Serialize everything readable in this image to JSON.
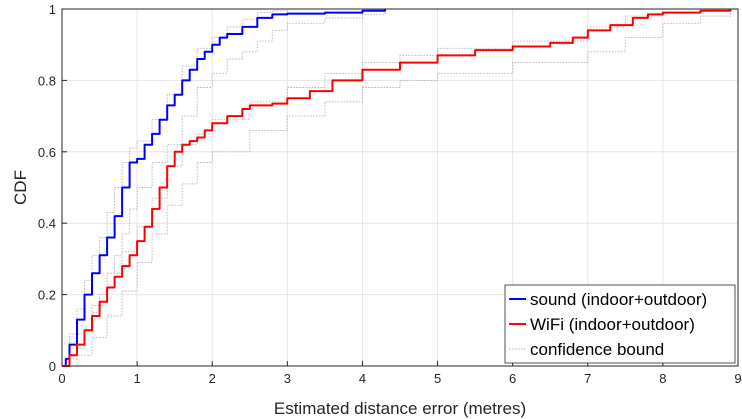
{
  "chart_data": {
    "type": "line",
    "xlabel": "Estimated distance error (metres)",
    "ylabel": "CDF",
    "xlim": [
      0,
      9
    ],
    "ylim": [
      0,
      1
    ],
    "xticks": [
      "0",
      "1",
      "2",
      "3",
      "4",
      "5",
      "6",
      "7",
      "8",
      "9"
    ],
    "yticks": [
      "0",
      "0.2",
      "0.4",
      "0.6",
      "0.8",
      "1"
    ],
    "grid": true,
    "legend_position": "bottom-right",
    "colors": {
      "sound": "#0000ff",
      "wifi": "#ff0000",
      "bound": "#b3b3b3",
      "axis": "#262626",
      "grid": "#e6e6e6"
    },
    "series": [
      {
        "name": "sound (indoor+outdoor)",
        "role": "main",
        "color": "#0000ff",
        "x": [
          0,
          0.05,
          0.1,
          0.2,
          0.3,
          0.4,
          0.5,
          0.6,
          0.7,
          0.8,
          0.9,
          1.0,
          1.1,
          1.2,
          1.3,
          1.4,
          1.5,
          1.6,
          1.7,
          1.8,
          1.9,
          2.0,
          2.1,
          2.2,
          2.4,
          2.6,
          2.8,
          3.0,
          3.5,
          4.0,
          4.3
        ],
        "y": [
          0,
          0.02,
          0.06,
          0.13,
          0.2,
          0.26,
          0.31,
          0.36,
          0.42,
          0.5,
          0.57,
          0.58,
          0.62,
          0.65,
          0.69,
          0.73,
          0.76,
          0.8,
          0.83,
          0.86,
          0.88,
          0.9,
          0.92,
          0.93,
          0.95,
          0.975,
          0.985,
          0.987,
          0.99,
          0.995,
          1.0
        ]
      },
      {
        "name": "WiFi (indoor+outdoor)",
        "role": "main",
        "color": "#ff0000",
        "x": [
          0,
          0.1,
          0.2,
          0.3,
          0.4,
          0.5,
          0.6,
          0.7,
          0.8,
          0.9,
          1.0,
          1.1,
          1.2,
          1.3,
          1.4,
          1.5,
          1.6,
          1.7,
          1.8,
          1.9,
          2.0,
          2.2,
          2.4,
          2.5,
          2.8,
          3.0,
          3.3,
          3.6,
          4.0,
          4.5,
          5.0,
          5.5,
          6.0,
          6.5,
          6.8,
          7.0,
          7.3,
          7.6,
          7.8,
          8.0,
          8.5,
          8.9
        ],
        "y": [
          0,
          0.03,
          0.06,
          0.1,
          0.14,
          0.18,
          0.22,
          0.25,
          0.28,
          0.31,
          0.35,
          0.39,
          0.44,
          0.5,
          0.56,
          0.6,
          0.62,
          0.63,
          0.64,
          0.66,
          0.68,
          0.7,
          0.72,
          0.73,
          0.735,
          0.75,
          0.77,
          0.8,
          0.83,
          0.85,
          0.87,
          0.885,
          0.895,
          0.905,
          0.92,
          0.94,
          0.955,
          0.975,
          0.985,
          0.99,
          0.995,
          1.0
        ]
      },
      {
        "name": "confidence bound",
        "role": "bound",
        "color": "#b3b3b3",
        "x": [
          0,
          0.1,
          0.2,
          0.3,
          0.4,
          0.5,
          0.6,
          0.7,
          0.8,
          0.9,
          1.0,
          1.2,
          1.4,
          1.6,
          1.8,
          2.0,
          2.2,
          2.4,
          2.6,
          2.8,
          3.0,
          3.5,
          4.0,
          4.3
        ],
        "y": [
          0,
          0.09,
          0.16,
          0.24,
          0.31,
          0.36,
          0.43,
          0.5,
          0.57,
          0.61,
          0.63,
          0.69,
          0.76,
          0.84,
          0.89,
          0.92,
          0.95,
          0.97,
          0.99,
          0.995,
          1.0,
          1.0,
          1.0,
          1.0
        ]
      },
      {
        "name": "",
        "role": "bound",
        "color": "#b3b3b3",
        "x": [
          0,
          0.1,
          0.2,
          0.3,
          0.4,
          0.5,
          0.6,
          0.7,
          0.8,
          0.9,
          1.0,
          1.2,
          1.4,
          1.6,
          1.8,
          2.0,
          2.2,
          2.4,
          2.6,
          2.8,
          3.0,
          3.5,
          4.0,
          4.3
        ],
        "y": [
          0,
          0.02,
          0.05,
          0.1,
          0.15,
          0.2,
          0.26,
          0.31,
          0.37,
          0.44,
          0.5,
          0.57,
          0.62,
          0.7,
          0.78,
          0.82,
          0.86,
          0.88,
          0.91,
          0.94,
          0.96,
          0.975,
          0.985,
          0.99
        ]
      },
      {
        "name": "",
        "role": "bound",
        "color": "#b3b3b3",
        "x": [
          0,
          0.2,
          0.4,
          0.6,
          0.8,
          1.0,
          1.2,
          1.4,
          1.6,
          1.8,
          2.0,
          2.5,
          3.0,
          3.5,
          4.0,
          4.5,
          5.0,
          6.0,
          7.0,
          7.5,
          8.0,
          8.5,
          8.9
        ],
        "y": [
          0,
          0.09,
          0.17,
          0.26,
          0.32,
          0.39,
          0.47,
          0.56,
          0.62,
          0.65,
          0.69,
          0.74,
          0.78,
          0.82,
          0.85,
          0.87,
          0.89,
          0.91,
          0.95,
          0.98,
          0.99,
          1.0,
          1.0
        ]
      },
      {
        "name": "",
        "role": "bound",
        "color": "#b3b3b3",
        "x": [
          0,
          0.2,
          0.4,
          0.6,
          0.8,
          1.0,
          1.2,
          1.4,
          1.6,
          1.8,
          2.0,
          2.5,
          3.0,
          3.5,
          4.0,
          4.5,
          5.0,
          6.0,
          7.0,
          7.5,
          8.0,
          8.5,
          8.9
        ],
        "y": [
          0,
          0.03,
          0.08,
          0.14,
          0.21,
          0.29,
          0.37,
          0.45,
          0.51,
          0.57,
          0.6,
          0.66,
          0.7,
          0.74,
          0.78,
          0.8,
          0.82,
          0.85,
          0.88,
          0.92,
          0.96,
          0.98,
          0.99
        ]
      }
    ],
    "legend": [
      {
        "label": "sound (indoor+outdoor)",
        "color": "#0000ff",
        "style": "solid"
      },
      {
        "label": "WiFi (indoor+outdoor)",
        "color": "#ff0000",
        "style": "solid"
      },
      {
        "label": "confidence bound",
        "color": "#b3b3b3",
        "style": "dotted"
      }
    ]
  }
}
